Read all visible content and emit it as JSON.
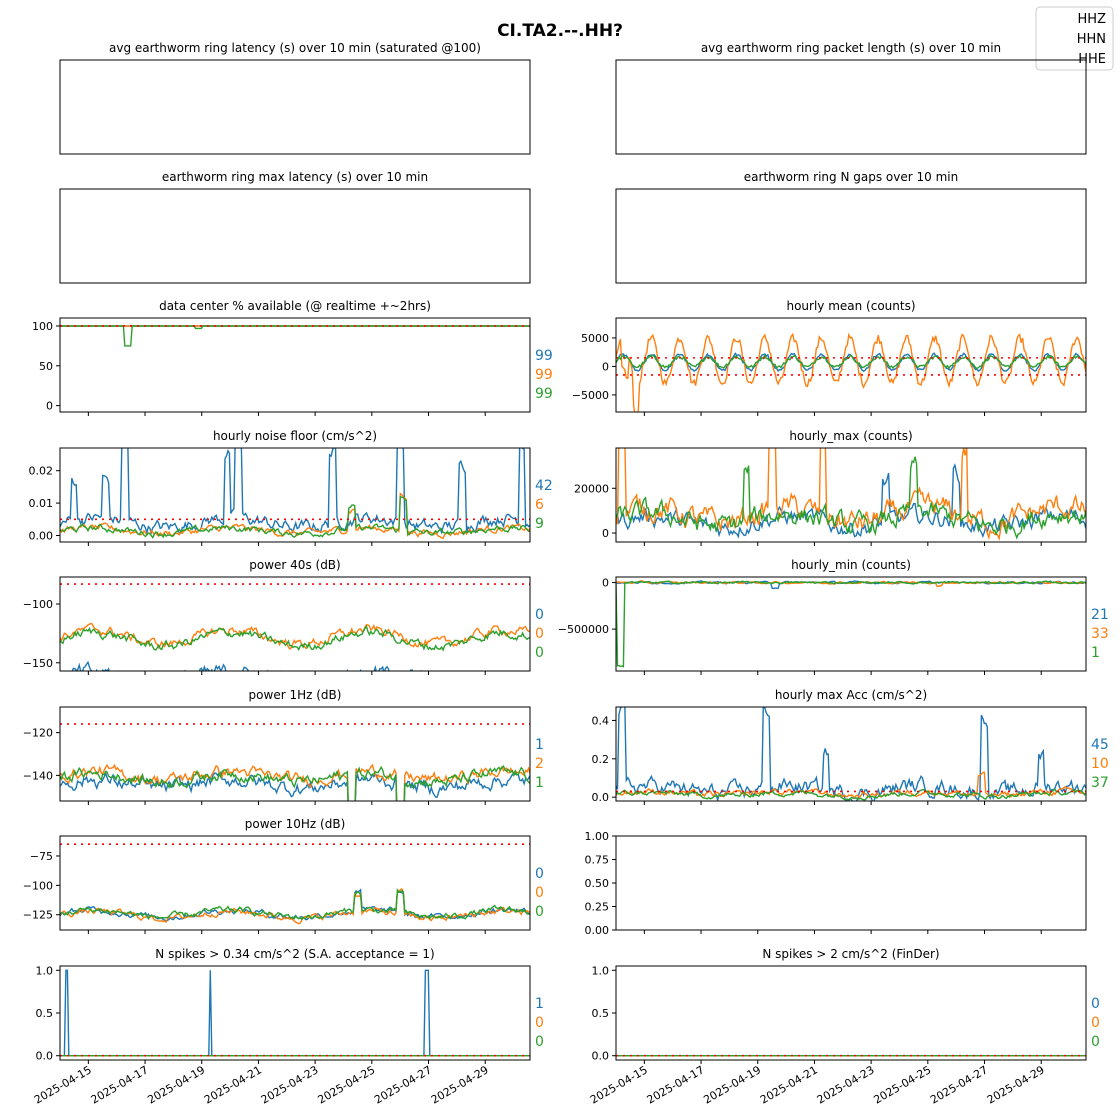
{
  "suptitle": "CI.TA2.--.HH?",
  "colors": {
    "HHZ": "#1f77b4",
    "HHN": "#ff7f0e",
    "HHE": "#2ca02c",
    "threshold": "#ff0000"
  },
  "legend": {
    "placement": "upper-right",
    "entries": [
      "HHZ",
      "HHN",
      "HHE"
    ]
  },
  "x_axis": {
    "range": [
      "2025-04-14",
      "2025-04-30T14:00"
    ],
    "tick_labels": [
      "2025-04-15",
      "2025-04-17",
      "2025-04-19",
      "2025-04-21",
      "2025-04-23",
      "2025-04-25",
      "2025-04-27",
      "2025-04-29"
    ]
  },
  "chart_data": [
    {
      "id": "p0",
      "type": "line",
      "title": "avg earthworm ring latency (s)   over 10 min (saturated @100)",
      "yticks": [],
      "series": [],
      "side_values": []
    },
    {
      "id": "p1",
      "type": "line",
      "title": "avg earthworm ring packet length (s)   over 10 min",
      "yticks": [],
      "series": [],
      "side_values": []
    },
    {
      "id": "p2",
      "type": "line",
      "title": "earthworm ring max latency (s)   over 10 min",
      "yticks": [],
      "series": [],
      "side_values": []
    },
    {
      "id": "p3",
      "type": "line",
      "title": "earthworm ring N gaps   over 10 min",
      "yticks": [],
      "series": [],
      "side_values": []
    },
    {
      "id": "p4",
      "type": "line",
      "title": "data center % available (@ realtime +~2hrs)",
      "ylim": [
        -8,
        110
      ],
      "yticks": [
        "0",
        "50",
        "100"
      ],
      "ytick_values": [
        0,
        50,
        100
      ],
      "thresholds": [
        100
      ],
      "side_values": [
        "99",
        "99",
        "99"
      ],
      "series": [
        {
          "gen": "flat",
          "base": 100,
          "amp": 0,
          "noise": 0,
          "spikes": []
        },
        {
          "gen": "flat",
          "base": 100,
          "amp": 0,
          "noise": 0,
          "spikes": []
        },
        {
          "gen": "flat",
          "base": 100,
          "amp": 0,
          "noise": 0,
          "spikes": [
            [
              2.4,
              -25
            ],
            [
              4.9,
              -3
            ]
          ]
        }
      ]
    },
    {
      "id": "p5",
      "type": "line",
      "title": "hourly mean (counts)",
      "ylim": [
        -8000,
        8500
      ],
      "yticks": [
        "−5000",
        "0",
        "5000"
      ],
      "ytick_values": [
        -5000,
        0,
        5000
      ],
      "thresholds": [
        1500,
        -1500
      ],
      "side_values": [],
      "series": [
        {
          "gen": "periodic",
          "base": 700,
          "amp": 1400,
          "period": 1,
          "noise": 250,
          "spikes": []
        },
        {
          "gen": "periodic",
          "base": 1000,
          "amp": 4000,
          "period": 1,
          "noise": 700,
          "spikes": [
            [
              0.3,
              -5500
            ],
            [
              0.7,
              -5800
            ]
          ]
        },
        {
          "gen": "periodic",
          "base": 800,
          "amp": 900,
          "period": 1,
          "noise": 300,
          "spikes": []
        }
      ]
    },
    {
      "id": "p6",
      "type": "line",
      "title": "hourly noise floor (cm/s^2)",
      "ylim": [
        -0.002,
        0.027
      ],
      "yticks": [
        "0.00",
        "0.01",
        "0.02"
      ],
      "ytick_values": [
        0,
        0.01,
        0.02
      ],
      "thresholds": [
        0.005
      ],
      "side_values": [
        "42",
        "6",
        "9"
      ],
      "series": [
        {
          "gen": "noisy",
          "base": 0.004,
          "amp": 0.0015,
          "noise": 0.0015,
          "spikes": [
            [
              0.5,
              0.012
            ],
            [
              1.6,
              0.012
            ],
            [
              2.3,
              0.024
            ],
            [
              5.9,
              0.02
            ],
            [
              6.3,
              0.024
            ],
            [
              9.6,
              0.022
            ],
            [
              12.0,
              0.025
            ],
            [
              14.2,
              0.018
            ],
            [
              16.3,
              0.024
            ]
          ]
        },
        {
          "gen": "noisy",
          "base": 0.0015,
          "amp": 0.0008,
          "noise": 0.0008,
          "spikes": [
            [
              10.3,
              0.006
            ],
            [
              12.1,
              0.011
            ]
          ]
        },
        {
          "gen": "noisy",
          "base": 0.0015,
          "amp": 0.0008,
          "noise": 0.0008,
          "spikes": [
            [
              10.3,
              0.006
            ],
            [
              12.1,
              0.01
            ]
          ]
        }
      ]
    },
    {
      "id": "p7",
      "type": "line",
      "title": "hourly_max (counts)",
      "ylim": [
        -4000,
        38000
      ],
      "yticks": [
        "0",
        "20000"
      ],
      "ytick_values": [
        0,
        20000
      ],
      "thresholds": [],
      "side_values": [],
      "series": [
        {
          "gen": "noisy",
          "base": 5000,
          "amp": 2500,
          "noise": 3000,
          "spikes": [
            [
              12.0,
              22000
            ],
            [
              9.5,
              18000
            ]
          ]
        },
        {
          "gen": "noisy",
          "base": 8000,
          "amp": 3500,
          "noise": 4000,
          "spikes": [
            [
              0.2,
              36000
            ],
            [
              5.5,
              34000
            ],
            [
              7.3,
              35000
            ],
            [
              12.3,
              30000
            ]
          ]
        },
        {
          "gen": "noisy",
          "base": 6000,
          "amp": 3000,
          "noise": 3500,
          "spikes": [
            [
              4.6,
              21000
            ],
            [
              10.5,
              20000
            ]
          ]
        }
      ]
    },
    {
      "id": "p8",
      "type": "line",
      "title": "power 40s (dB)",
      "ylim": [
        -157,
        -77
      ],
      "yticks": [
        "−100",
        "−150"
      ],
      "ytick_values": [
        -100,
        -150
      ],
      "thresholds": [
        -83
      ],
      "side_values": [
        "0",
        "0",
        "0"
      ],
      "series": [
        {
          "gen": "noisy",
          "base": -162,
          "amp": 3,
          "noise": 5,
          "spikes": []
        },
        {
          "gen": "noisy",
          "base": -128,
          "amp": 6,
          "noise": 3,
          "spikes": []
        },
        {
          "gen": "noisy",
          "base": -130,
          "amp": 6,
          "noise": 3,
          "spikes": []
        }
      ]
    },
    {
      "id": "p9",
      "type": "line",
      "title": "hourly_min (counts)",
      "ylim": [
        -950000,
        60000
      ],
      "yticks": [
        "0",
        "−500000"
      ],
      "ytick_values": [
        0,
        -500000
      ],
      "thresholds": [],
      "side_values": [
        "21",
        "33",
        "1"
      ],
      "series": [
        {
          "gen": "noisy",
          "base": 0,
          "amp": 0,
          "noise": 8000,
          "spikes": [
            [
              5.6,
              -50000
            ]
          ]
        },
        {
          "gen": "noisy",
          "base": 0,
          "amp": 0,
          "noise": 8000,
          "spikes": [
            [
              11.4,
              -40000
            ]
          ]
        },
        {
          "gen": "noisy",
          "base": 0,
          "amp": 0,
          "noise": 8000,
          "spikes": [
            [
              0.15,
              -900000
            ]
          ]
        }
      ]
    },
    {
      "id": "p10",
      "type": "line",
      "title": "power 1Hz (dB)",
      "ylim": [
        -152,
        -108
      ],
      "yticks": [
        "−120",
        "−140"
      ],
      "ytick_values": [
        -120,
        -140
      ],
      "thresholds": [
        -116
      ],
      "side_values": [
        "1",
        "2",
        "1"
      ],
      "series": [
        {
          "gen": "noisy",
          "base": -144,
          "amp": 2,
          "noise": 2.5,
          "spikes": [
            [
              10.3,
              -21
            ],
            [
              12.0,
              -28
            ]
          ]
        },
        {
          "gen": "noisy",
          "base": -140,
          "amp": 2,
          "noise": 2,
          "spikes": [
            [
              10.3,
              -20
            ],
            [
              12.0,
              -27
            ]
          ]
        },
        {
          "gen": "noisy",
          "base": -141,
          "amp": 2,
          "noise": 2,
          "spikes": [
            [
              10.3,
              -20
            ],
            [
              12.0,
              -26
            ]
          ]
        }
      ]
    },
    {
      "id": "p11",
      "type": "line",
      "title": "hourly max Acc (cm/s^2)",
      "ylim": [
        -0.02,
        0.47
      ],
      "yticks": [
        "0.0",
        "0.2",
        "0.4"
      ],
      "ytick_values": [
        0,
        0.2,
        0.4
      ],
      "thresholds": [
        0.03
      ],
      "side_values": [
        "45",
        "10",
        "37"
      ],
      "series": [
        {
          "gen": "noisy",
          "base": 0.04,
          "amp": 0.02,
          "noise": 0.03,
          "spikes": [
            [
              0.2,
              0.4
            ],
            [
              5.3,
              0.4
            ],
            [
              7.4,
              0.2
            ],
            [
              13.0,
              0.4
            ],
            [
              15.0,
              0.17
            ]
          ]
        },
        {
          "gen": "noisy",
          "base": 0.02,
          "amp": 0.01,
          "noise": 0.012,
          "spikes": [
            [
              12.9,
              0.1
            ]
          ]
        },
        {
          "gen": "noisy",
          "base": 0.015,
          "amp": 0.008,
          "noise": 0.01,
          "spikes": []
        }
      ]
    },
    {
      "id": "p12",
      "type": "line",
      "title": "power 10Hz (dB)",
      "ylim": [
        -138,
        -58
      ],
      "yticks": [
        "−75",
        "−100",
        "−125"
      ],
      "ytick_values": [
        -75,
        -100,
        -125
      ],
      "thresholds": [
        -65
      ],
      "side_values": [
        "0",
        "0",
        "0"
      ],
      "series": [
        {
          "gen": "noisy",
          "base": -124,
          "amp": 3,
          "noise": 2,
          "spikes": [
            [
              10.5,
              15
            ],
            [
              12.0,
              18
            ]
          ]
        },
        {
          "gen": "noisy",
          "base": -125,
          "amp": 3,
          "noise": 2,
          "spikes": [
            [
              10.5,
              15
            ],
            [
              12.0,
              18
            ]
          ]
        },
        {
          "gen": "noisy",
          "base": -124,
          "amp": 3,
          "noise": 2,
          "spikes": [
            [
              10.5,
              15
            ],
            [
              12.0,
              18
            ]
          ]
        }
      ]
    },
    {
      "id": "p13",
      "type": "line",
      "title": "",
      "ylim": [
        0,
        1
      ],
      "yticks": [
        "0.00",
        "0.25",
        "0.50",
        "0.75",
        "1.00"
      ],
      "ytick_values": [
        0,
        0.25,
        0.5,
        0.75,
        1
      ],
      "thresholds": [],
      "side_values": [],
      "series": []
    },
    {
      "id": "p14",
      "type": "line",
      "title": "N spikes > 0.34 cm/s^2 (S.A. acceptance = 1)",
      "ylim": [
        -0.05,
        1.05
      ],
      "yticks": [
        "0.0",
        "0.5",
        "1.0"
      ],
      "ytick_values": [
        0,
        0.5,
        1
      ],
      "thresholds": [
        0
      ],
      "side_values": [
        "1",
        "0",
        "0"
      ],
      "series": [
        {
          "gen": "spiky",
          "base": 0,
          "spikes": [
            [
              0.25,
              1
            ],
            [
              5.3,
              1
            ],
            [
              12.9,
              1
            ],
            [
              12.95,
              1
            ]
          ]
        },
        {
          "gen": "flat",
          "base": 0,
          "amp": 0,
          "noise": 0,
          "spikes": []
        },
        {
          "gen": "flat",
          "base": 0,
          "amp": 0,
          "noise": 0,
          "spikes": []
        }
      ]
    },
    {
      "id": "p15",
      "type": "line",
      "title": "N spikes > 2 cm/s^2 (FinDer)",
      "ylim": [
        -0.05,
        1.05
      ],
      "yticks": [
        "0.0",
        "0.5",
        "1.0"
      ],
      "ytick_values": [
        0,
        0.5,
        1
      ],
      "thresholds": [
        0
      ],
      "side_values": [
        "0",
        "0",
        "0"
      ],
      "series": [
        {
          "gen": "flat",
          "base": 0,
          "amp": 0,
          "noise": 0,
          "spikes": []
        },
        {
          "gen": "flat",
          "base": 0,
          "amp": 0,
          "noise": 0,
          "spikes": []
        },
        {
          "gen": "flat",
          "base": 0,
          "amp": 0,
          "noise": 0,
          "spikes": []
        }
      ]
    }
  ]
}
